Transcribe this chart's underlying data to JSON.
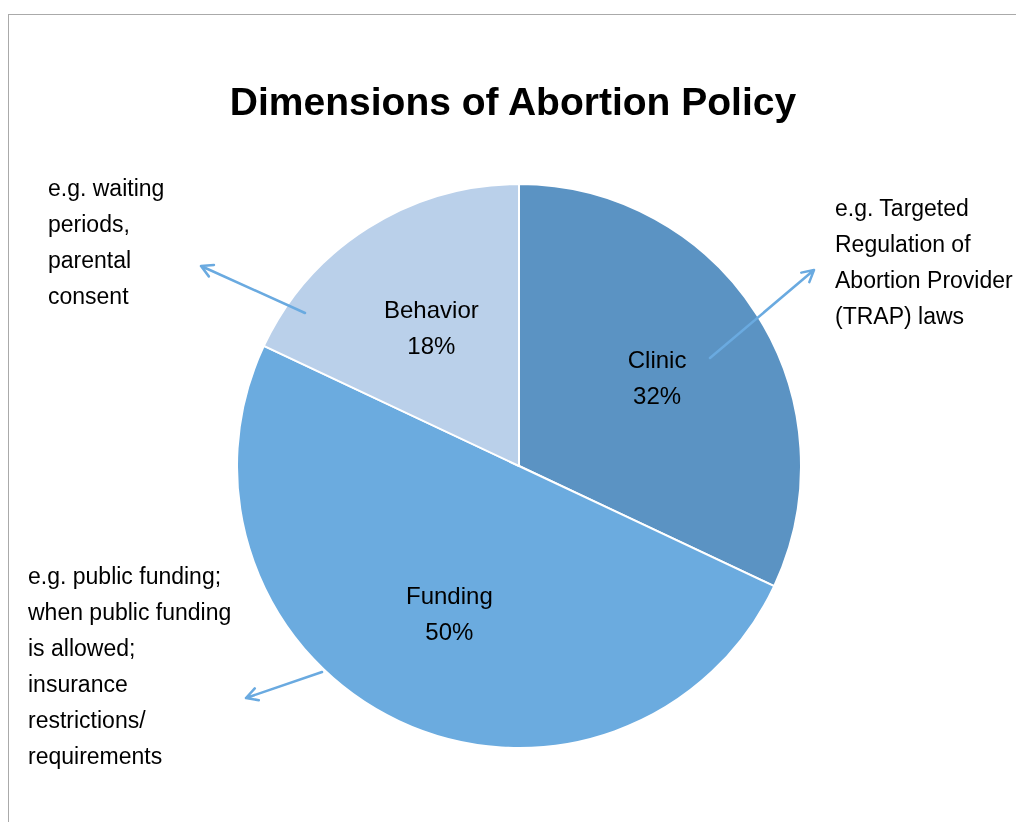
{
  "chart_data": {
    "type": "pie",
    "title": "Dimensions of Abortion Policy",
    "categories": [
      "Clinic",
      "Funding",
      "Behavior"
    ],
    "values": [
      32,
      50,
      18
    ],
    "value_labels": [
      "32%",
      "50%",
      "18%"
    ],
    "colors": [
      "#5b93c3",
      "#6babdf",
      "#bad0ea"
    ],
    "legend": false,
    "annotations": [
      "e.g. Targeted Regulation of Abortion Provider (TRAP) laws",
      "e.g. public funding; when public funding is allowed; insurance restrictions/ requirements",
      "e.g. waiting periods, parental consent"
    ]
  }
}
